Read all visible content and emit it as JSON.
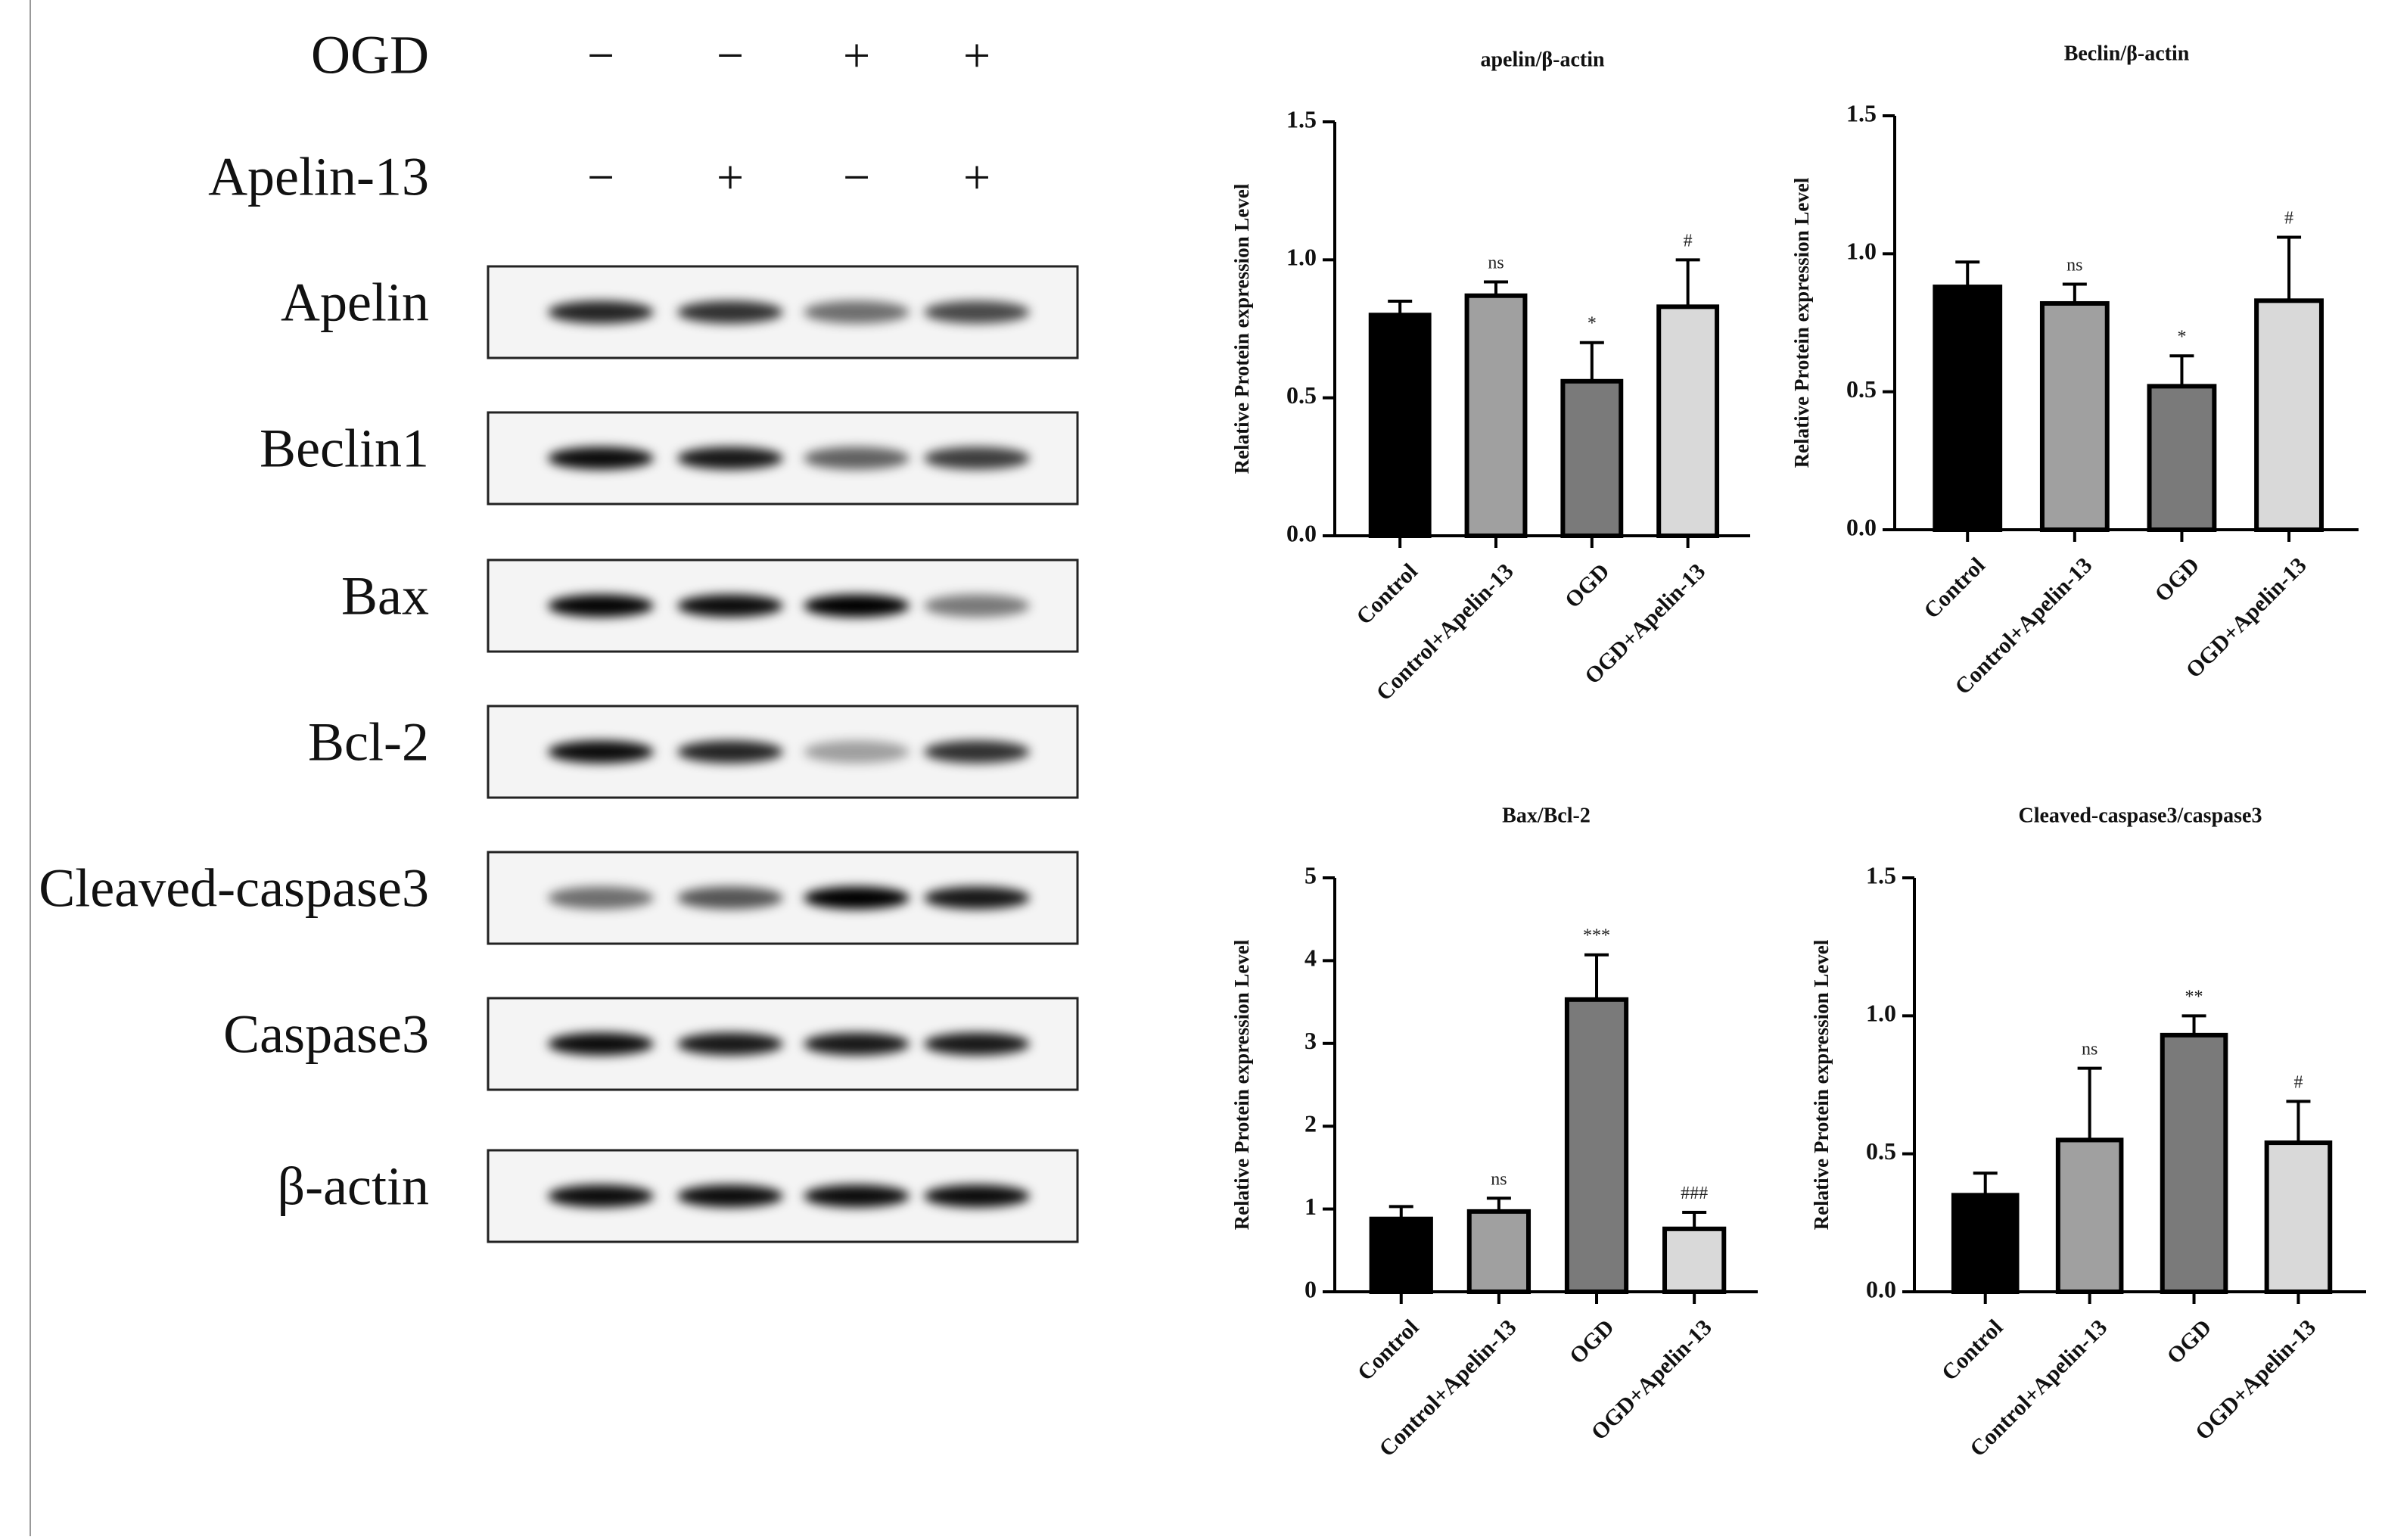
{
  "blot": {
    "conditions": [
      {
        "label": "OGD",
        "signs": [
          "−",
          "−",
          "+",
          "+"
        ]
      },
      {
        "label": "Apelin-13",
        "signs": [
          "−",
          "+",
          "−",
          "+"
        ]
      }
    ],
    "proteins": [
      "Apelin",
      "Beclin1",
      "Bax",
      "Bcl-2",
      "Cleaved-caspase3",
      "Caspase3",
      "β-actin"
    ]
  },
  "chart_data": [
    {
      "type": "bar",
      "title": "apelin/β-actin",
      "ylabel": "Relative Protein expression Level",
      "categories": [
        "Control",
        "Control+Apelin-13",
        "OGD",
        "OGD+Apelin-13"
      ],
      "values": [
        0.8,
        0.87,
        0.56,
        0.83
      ],
      "errors": [
        0.05,
        0.05,
        0.14,
        0.17
      ],
      "annotations": [
        null,
        "ns",
        "*",
        "#"
      ],
      "colors": [
        "#000000",
        "#a0a0a0",
        "#7a7a7a",
        "#d9d9d9"
      ],
      "ylim": [
        0,
        1.5
      ],
      "yticks": [
        {
          "value": 0,
          "label": "0.0"
        },
        {
          "value": 0.5,
          "label": "0.5"
        },
        {
          "value": 1,
          "label": "1.0"
        },
        {
          "value": 1.5,
          "label": "1.5"
        }
      ]
    },
    {
      "type": "bar",
      "title": "Beclin/β-actin",
      "ylabel": "Relative Protein expression Level",
      "categories": [
        "Control",
        "Control+Apelin-13",
        "OGD",
        "OGD+Apelin-13"
      ],
      "values": [
        0.88,
        0.82,
        0.52,
        0.83
      ],
      "errors": [
        0.09,
        0.07,
        0.11,
        0.23
      ],
      "annotations": [
        null,
        "ns",
        "*",
        "#"
      ],
      "colors": [
        "#000000",
        "#a0a0a0",
        "#7a7a7a",
        "#d9d9d9"
      ],
      "ylim": [
        0,
        1.5
      ],
      "yticks": [
        {
          "value": 0,
          "label": "0.0"
        },
        {
          "value": 0.5,
          "label": "0.5"
        },
        {
          "value": 1,
          "label": "1.0"
        },
        {
          "value": 1.5,
          "label": "1.5"
        }
      ]
    },
    {
      "type": "bar",
      "title": "Bax/Bcl-2",
      "ylabel": "Relative Protein expression Level",
      "categories": [
        "Control",
        "Control+Apelin-13",
        "OGD",
        "OGD+Apelin-13"
      ],
      "values": [
        0.88,
        0.97,
        3.53,
        0.76
      ],
      "errors": [
        0.15,
        0.16,
        0.54,
        0.2
      ],
      "annotations": [
        null,
        "ns",
        "***",
        "###"
      ],
      "colors": [
        "#000000",
        "#a0a0a0",
        "#7a7a7a",
        "#d9d9d9"
      ],
      "ylim": [
        0,
        5
      ],
      "yticks": [
        0,
        1,
        2,
        3,
        4,
        5
      ]
    },
    {
      "type": "bar",
      "title": "Cleaved-caspase3/caspase3",
      "ylabel": "Relative Protein expression Level",
      "categories": [
        "Control",
        "Control+Apelin-13",
        "OGD",
        "OGD+Apelin-13"
      ],
      "values": [
        0.35,
        0.55,
        0.93,
        0.54
      ],
      "errors": [
        0.08,
        0.26,
        0.07,
        0.15
      ],
      "annotations": [
        null,
        "ns",
        "**",
        "#"
      ],
      "colors": [
        "#000000",
        "#a0a0a0",
        "#7a7a7a",
        "#d9d9d9"
      ],
      "ylim": [
        0,
        1.5
      ],
      "yticks": [
        {
          "value": 0,
          "label": "0.0"
        },
        {
          "value": 0.5,
          "label": "0.5"
        },
        {
          "value": 1,
          "label": "1.0"
        },
        {
          "value": 1.5,
          "label": "1.5"
        }
      ]
    }
  ]
}
